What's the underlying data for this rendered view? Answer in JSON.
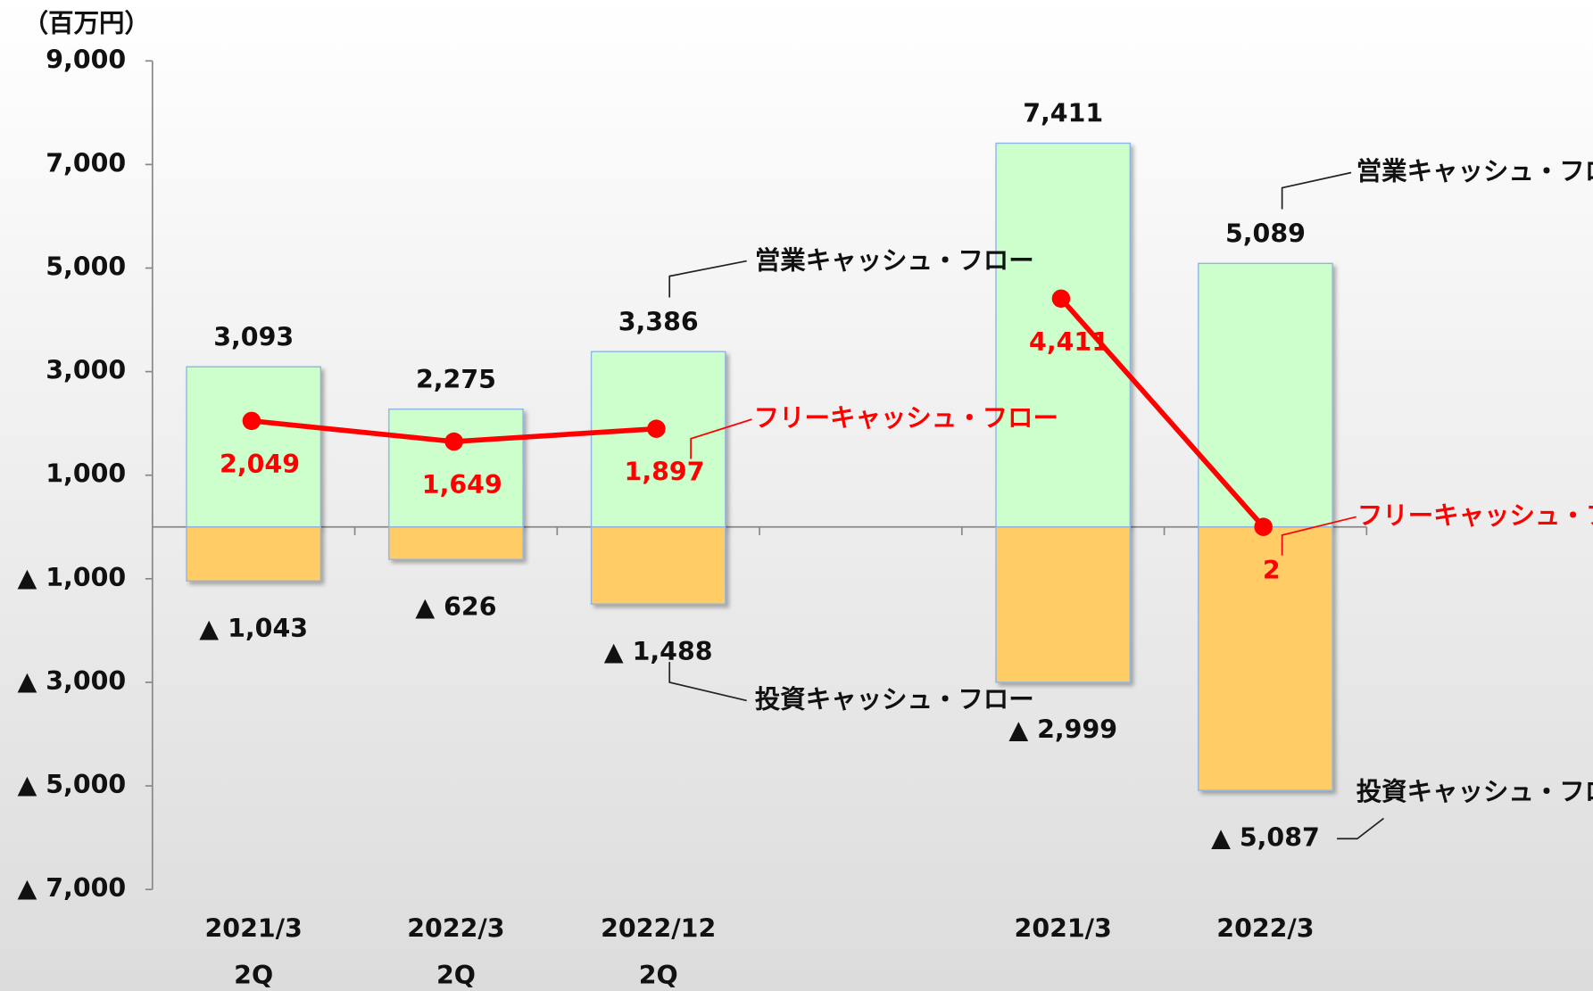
{
  "chart_data": {
    "type": "bar",
    "y_label": "（百万円）",
    "categories": [
      [
        "2021/3",
        "2Q"
      ],
      [
        "2022/3",
        "2Q"
      ],
      [
        "2022/12",
        "2Q"
      ],
      null,
      [
        "2021/3"
      ],
      [
        "2022/3"
      ]
    ],
    "ylim": [
      -7000,
      9000
    ],
    "yticks": [
      {
        "value": 9000,
        "label": "9,000"
      },
      {
        "value": 7000,
        "label": "7,000"
      },
      {
        "value": 5000,
        "label": "5,000"
      },
      {
        "value": 3000,
        "label": "3,000"
      },
      {
        "value": 1000,
        "label": "1,000"
      },
      {
        "value": -1000,
        "label": "▲ 1,000"
      },
      {
        "value": -3000,
        "label": "▲ 3,000"
      },
      {
        "value": -5000,
        "label": "▲ 5,000"
      },
      {
        "value": -7000,
        "label": "▲ 7,000"
      }
    ],
    "series": [
      {
        "name": "営業キャッシュ・フロー",
        "type": "bar",
        "color": "#ccffcc",
        "edge_color": "#8eb4e3",
        "values": [
          3093,
          2275,
          3386,
          null,
          7411,
          5089
        ],
        "value_labels": [
          "3,093",
          "2,275",
          "3,386",
          null,
          "7,411",
          "5,089"
        ]
      },
      {
        "name": "投資キャッシュ・フロー",
        "type": "bar",
        "color": "#ffcc66",
        "edge_color": "#8eb4e3",
        "values": [
          -1043,
          -626,
          -1488,
          null,
          -2999,
          -5087
        ],
        "value_labels": [
          "▲ 1,043",
          "▲ 626",
          "▲ 1,488",
          null,
          "▲ 2,999",
          "▲ 5,087"
        ]
      },
      {
        "name": "フリーキャッシュ・フロー",
        "type": "line",
        "color": "#ff0000",
        "values": [
          2049,
          1649,
          1897,
          null,
          4411,
          2
        ],
        "value_labels": [
          "2,049",
          "1,649",
          "1,897",
          null,
          "4,411",
          "2"
        ]
      }
    ]
  }
}
